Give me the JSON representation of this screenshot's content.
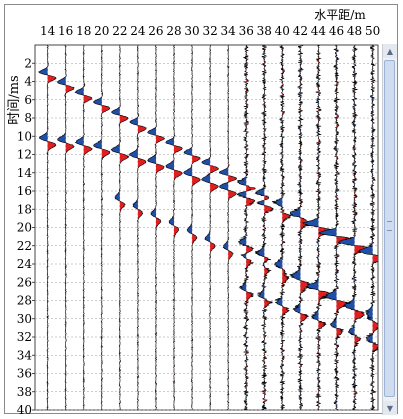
{
  "chart_data": {
    "type": "seismic-wiggle",
    "xlabel": "水平距/m",
    "ylabel": "时间/ms",
    "x_ticks": [
      14,
      16,
      18,
      20,
      22,
      24,
      26,
      28,
      30,
      32,
      34,
      36,
      38,
      40,
      42,
      44,
      46,
      48,
      50
    ],
    "y_ticks": [
      2,
      4,
      6,
      8,
      10,
      12,
      14,
      16,
      18,
      20,
      22,
      24,
      26,
      28,
      30,
      32,
      34,
      36,
      38,
      40
    ],
    "xlim": [
      12.6,
      50.6
    ],
    "ylim": [
      0,
      40
    ],
    "grid": true,
    "fill_colors": {
      "positive": "#e02020",
      "negative": "#1f4fa8"
    },
    "trace_offsets": [
      14,
      16,
      18,
      20,
      22,
      24,
      26,
      28,
      30,
      32,
      34,
      36,
      38,
      40,
      42,
      44,
      46,
      48,
      50
    ]
  },
  "ui": {
    "scroll_up_icon": "▲",
    "scroll_down_icon": "▼"
  }
}
